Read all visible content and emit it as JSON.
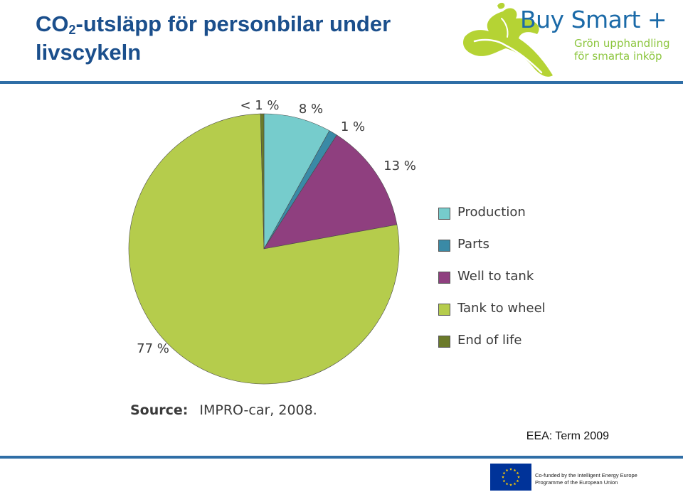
{
  "header": {
    "title_prefix": "CO",
    "title_sub": "2",
    "title_rest": "-utsläpp för personbilar under livscykeln"
  },
  "logo": {
    "name": "Buy Smart +",
    "tagline_1": "Grön upphandling",
    "tagline_2": "för smarta inköp",
    "colors": {
      "text": "#1b6aa8",
      "leaf": "#b5d334",
      "tagline": "#8dc63f"
    }
  },
  "chart_data": {
    "type": "pie",
    "slices": [
      {
        "name": "Production",
        "value": 8,
        "label": "8 %",
        "color": "#76cccc"
      },
      {
        "name": "Parts",
        "value": 1,
        "label": "1 %",
        "color": "#3a8aa6"
      },
      {
        "name": "Well to tank",
        "value": 13,
        "label": "13 %",
        "color": "#8f3f7f"
      },
      {
        "name": "Tank to wheel",
        "value": 77,
        "label": "77 %",
        "color": "#b5cc4c"
      },
      {
        "name": "End of life",
        "value": 0.4,
        "label": "< 1 %",
        "color": "#6b7a2a"
      }
    ],
    "start": "12 o'clock, clockwise",
    "legend_position": "right"
  },
  "legend": {
    "items": [
      {
        "label": "Production",
        "color": "#76cccc"
      },
      {
        "label": "Parts",
        "color": "#3a8aa6"
      },
      {
        "label": "Well to tank",
        "color": "#8f3f7f"
      },
      {
        "label": "Tank to wheel",
        "color": "#b5cc4c"
      },
      {
        "label": "End of life",
        "color": "#6b7a2a"
      }
    ]
  },
  "source": {
    "label": "Source:",
    "text": "IMPRO-car, 2008."
  },
  "credit": "EEA: Term 2009",
  "footer": {
    "eu_line_1": "Co-funded by the Intelligent Energy Europe",
    "eu_line_2": "Programme of the European Union"
  },
  "colors": {
    "title": "#1b4f8c",
    "rule": "#2f6ea6",
    "eu_blue": "#003399",
    "eu_star": "#ffcc00"
  }
}
